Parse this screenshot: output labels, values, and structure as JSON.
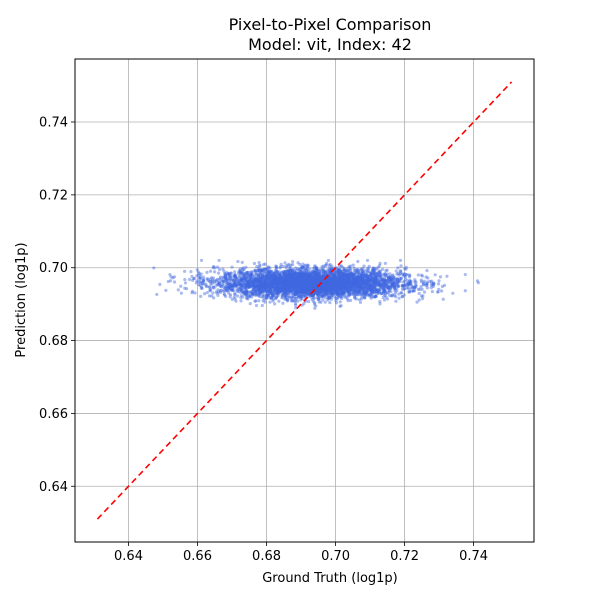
{
  "chart_data": {
    "type": "scatter",
    "title_line1": "Pixel-to-Pixel Comparison",
    "title_line2": "Model: vit, Index: 42",
    "xlabel": "Ground Truth (log1p)",
    "ylabel": "Prediction (log1p)",
    "xlim": [
      0.6245,
      0.7575
    ],
    "ylim": [
      0.6247,
      0.7573
    ],
    "x_ticks": [
      0.64,
      0.66,
      0.68,
      0.7,
      0.72,
      0.74
    ],
    "y_ticks": [
      0.64,
      0.66,
      0.68,
      0.7,
      0.72,
      0.74
    ],
    "x_tick_labels": [
      "0.64",
      "0.66",
      "0.68",
      "0.70",
      "0.72",
      "0.74"
    ],
    "y_tick_labels": [
      "0.64",
      "0.66",
      "0.68",
      "0.70",
      "0.72",
      "0.74"
    ],
    "grid": true,
    "scatter": {
      "color": "#4169e1",
      "x_center": 0.693,
      "x_spread": 0.03,
      "y_center": 0.6957,
      "y_spread": 0.0048,
      "x_range": [
        0.631,
        0.752
      ],
      "y_range": [
        0.687,
        0.702
      ]
    },
    "reference_line": {
      "color": "#ff0000",
      "style": "dashed",
      "from": [
        0.631,
        0.631
      ],
      "to": [
        0.751,
        0.751
      ]
    }
  }
}
